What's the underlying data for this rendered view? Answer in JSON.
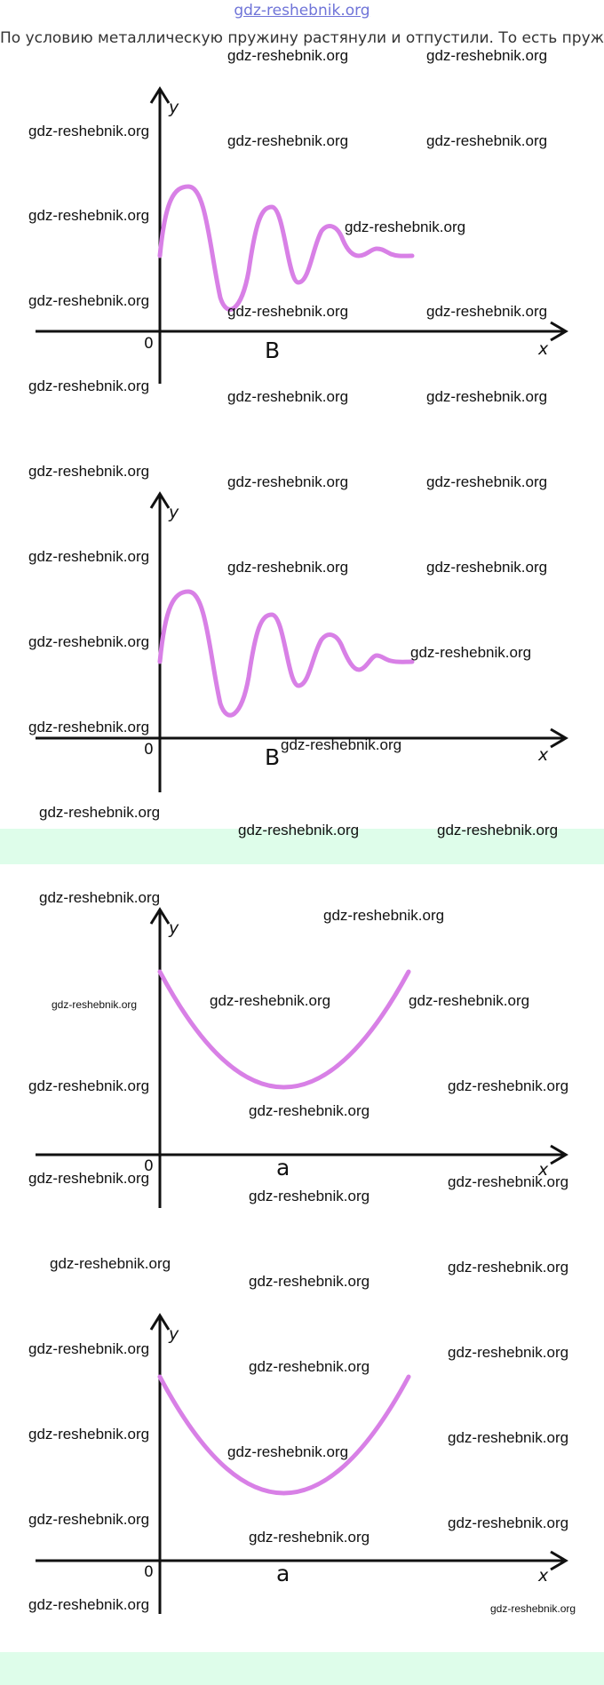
{
  "header": {
    "site_link": "gdz-reshebnik.org",
    "intro_text": "По условию металлическую пружину растянули и отпустили. То есть пружина"
  },
  "watermark": "gdz-reshebnik.org",
  "graphs": [
    {
      "letter": "B",
      "y_label": "y",
      "x_label": "x",
      "zero_label": "0",
      "curve": "damped-oscillation"
    },
    {
      "letter": "B",
      "y_label": "y",
      "x_label": "x",
      "zero_label": "0",
      "curve": "damped-oscillation"
    },
    {
      "letter": "a",
      "y_label": "y",
      "x_label": "x",
      "zero_label": "0",
      "curve": "parabola"
    },
    {
      "letter": "a",
      "y_label": "y",
      "x_label": "x",
      "zero_label": "0",
      "curve": "parabola"
    }
  ],
  "colors": {
    "curve": "#d880e6",
    "axis": "#111111",
    "band": "#defdea",
    "link": "#6f74d8"
  }
}
